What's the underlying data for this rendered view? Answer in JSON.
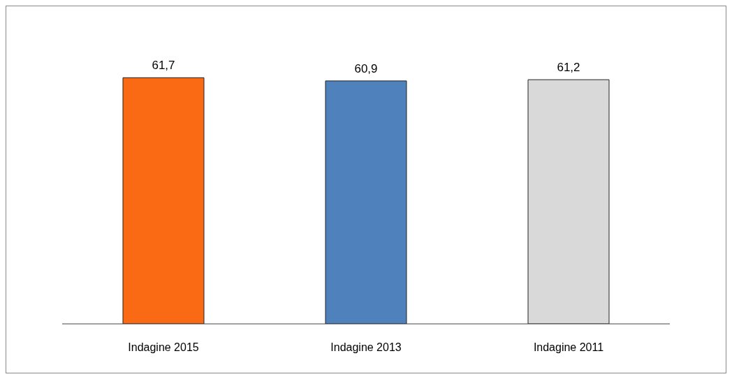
{
  "chart_data": {
    "type": "bar",
    "categories": [
      "Indagine 2015",
      "Indagine 2013",
      "Indagine 2011"
    ],
    "values": [
      61.7,
      60.9,
      61.2
    ],
    "value_labels": [
      "61,7",
      "60,9",
      "61,2"
    ],
    "colors": [
      "#fa6a14",
      "#4f81bd",
      "#d9d9d9"
    ],
    "grid": false,
    "legend": false
  }
}
